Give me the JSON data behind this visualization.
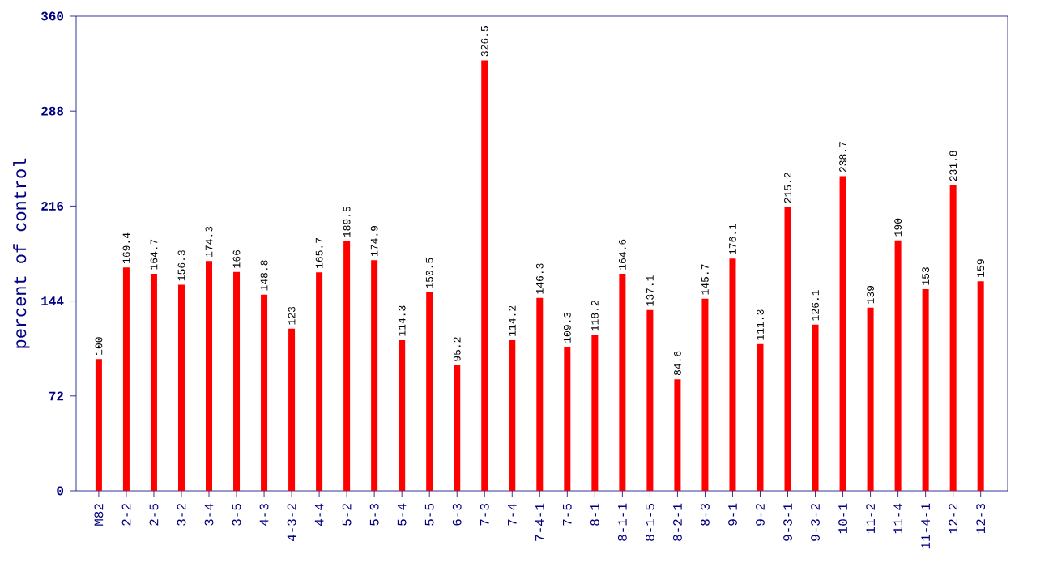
{
  "chart_data": {
    "type": "bar",
    "ylabel": "percent of control",
    "categories": [
      "M82",
      "2-2",
      "2-5",
      "3-2",
      "3-4",
      "3-5",
      "4-3",
      "4-3-2",
      "4-4",
      "5-2",
      "5-3",
      "5-4",
      "5-5",
      "6-3",
      "7-3",
      "7-4",
      "7-4-1",
      "7-5",
      "8-1",
      "8-1-1",
      "8-1-5",
      "8-2-1",
      "8-3",
      "9-1",
      "9-2",
      "9-3-1",
      "9-3-2",
      "10-1",
      "11-2",
      "11-4",
      "11-4-1",
      "12-2",
      "12-3"
    ],
    "values": [
      100,
      169.4,
      164.7,
      156.3,
      174.3,
      166,
      148.8,
      123,
      165.7,
      189.5,
      174.9,
      114.3,
      150.5,
      95.2,
      326.5,
      114.2,
      146.3,
      109.3,
      118.2,
      164.6,
      137.1,
      84.6,
      145.7,
      176.1,
      111.3,
      215.2,
      126.1,
      238.7,
      139,
      190,
      153,
      231.8,
      159
    ],
    "color": "#ff0000",
    "ylim": [
      0,
      360
    ],
    "yticks": [
      0,
      72,
      144,
      216,
      288,
      360
    ],
    "data_labels": true
  }
}
